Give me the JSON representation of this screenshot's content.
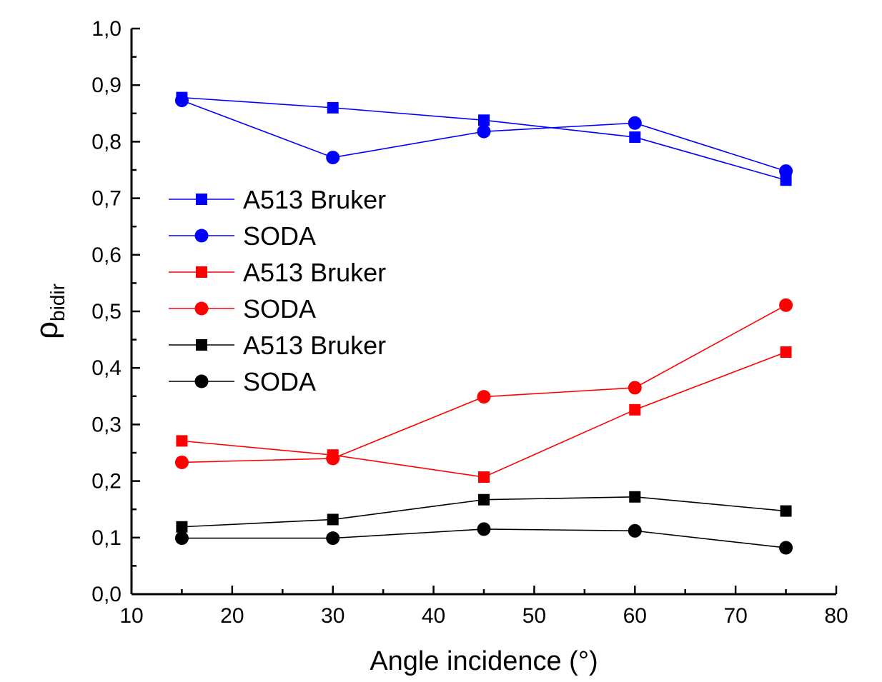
{
  "chart_data": {
    "type": "line",
    "title": "",
    "xlabel": "Angle incidence (°)",
    "ylabel_main": "ρ",
    "ylabel_sub": "bidir",
    "xlim": [
      10,
      80
    ],
    "ylim": [
      0.0,
      1.0
    ],
    "x_ticks": [
      10,
      20,
      30,
      40,
      50,
      60,
      70,
      80
    ],
    "x_tick_labels": [
      "10",
      "20",
      "30",
      "40",
      "50",
      "60",
      "70",
      "80"
    ],
    "y_ticks": [
      0.0,
      0.1,
      0.2,
      0.3,
      0.4,
      0.5,
      0.6,
      0.7,
      0.8,
      0.9,
      1.0
    ],
    "y_tick_labels": [
      "0,0",
      "0,1",
      "0,2",
      "0,3",
      "0,4",
      "0,5",
      "0,6",
      "0,7",
      "0,8",
      "0,9",
      "1,0"
    ],
    "x_minor_step": 5,
    "y_minor_step": 0.05,
    "grid": false,
    "legend_position": "left",
    "series": [
      {
        "name": "A513 Bruker",
        "marker": "square",
        "color": "#0000ff",
        "x": [
          15,
          30,
          45,
          60,
          75
        ],
        "y": [
          0.878,
          0.86,
          0.838,
          0.808,
          0.732
        ]
      },
      {
        "name": "SODA",
        "marker": "circle",
        "color": "#0000ff",
        "x": [
          15,
          30,
          45,
          60,
          75
        ],
        "y": [
          0.873,
          0.772,
          0.818,
          0.833,
          0.748
        ]
      },
      {
        "name": "A513 Bruker",
        "marker": "square",
        "color": "#ff0000",
        "x": [
          15,
          30,
          45,
          60,
          75
        ],
        "y": [
          0.271,
          0.246,
          0.207,
          0.326,
          0.428
        ]
      },
      {
        "name": "SODA",
        "marker": "circle",
        "color": "#ff0000",
        "x": [
          15,
          30,
          45,
          60,
          75
        ],
        "y": [
          0.233,
          0.24,
          0.349,
          0.365,
          0.511
        ]
      },
      {
        "name": "A513 Bruker",
        "marker": "square",
        "color": "#000000",
        "x": [
          15,
          30,
          45,
          60,
          75
        ],
        "y": [
          0.119,
          0.132,
          0.167,
          0.172,
          0.147
        ]
      },
      {
        "name": "SODA",
        "marker": "circle",
        "color": "#000000",
        "x": [
          15,
          30,
          45,
          60,
          75
        ],
        "y": [
          0.099,
          0.099,
          0.115,
          0.112,
          0.082
        ]
      }
    ]
  }
}
